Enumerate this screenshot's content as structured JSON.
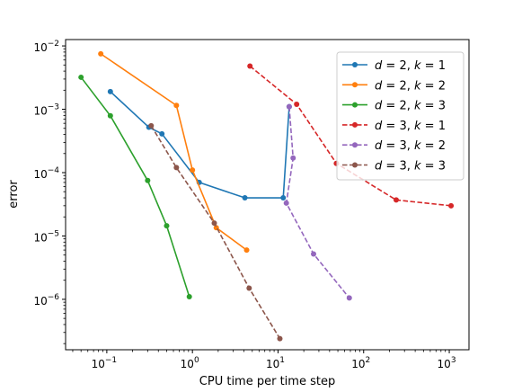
{
  "chart_data": {
    "type": "line",
    "xlabel": "CPU time per time step",
    "ylabel": "error",
    "xscale": "log",
    "yscale": "log",
    "xlim": [
      0.033,
      1700
    ],
    "ylim": [
      1.6e-07,
      0.0126
    ],
    "grid": false,
    "legend_position": "top-right",
    "x_ticks": [
      {
        "value": 0.1,
        "base": "10",
        "exp": "−1"
      },
      {
        "value": 1,
        "base": "10",
        "exp": "0"
      },
      {
        "value": 10,
        "base": "10",
        "exp": "1"
      },
      {
        "value": 100,
        "base": "10",
        "exp": "2"
      },
      {
        "value": 1000,
        "base": "10",
        "exp": "3"
      }
    ],
    "y_ticks": [
      {
        "value": 1e-06,
        "base": "10",
        "exp": "−6"
      },
      {
        "value": 1e-05,
        "base": "10",
        "exp": "−5"
      },
      {
        "value": 0.0001,
        "base": "10",
        "exp": "−4"
      },
      {
        "value": 0.001,
        "base": "10",
        "exp": "−3"
      },
      {
        "value": 0.01,
        "base": "10",
        "exp": "−2"
      }
    ],
    "series": [
      {
        "id": "d2k1",
        "name": "d = 2, k = 1",
        "d": "2",
        "k": "1",
        "color": "#1f77b4",
        "dashed": false,
        "points": [
          [
            0.11,
            0.0019
          ],
          [
            0.31,
            0.00052
          ],
          [
            0.44,
            0.00041
          ],
          [
            1.2,
            7e-05
          ],
          [
            4.1,
            4e-05
          ],
          [
            11.5,
            4e-05
          ],
          [
            13.5,
            0.0011
          ]
        ]
      },
      {
        "id": "d2k2",
        "name": "d = 2, k = 2",
        "d": "2",
        "k": "2",
        "color": "#ff7f0e",
        "dashed": false,
        "points": [
          [
            0.085,
            0.0075
          ],
          [
            0.65,
            0.00115
          ],
          [
            1.0,
            0.00011
          ],
          [
            1.9,
            1.35e-05
          ],
          [
            4.3,
            6e-06
          ]
        ]
      },
      {
        "id": "d2k3",
        "name": "d = 2, k = 3",
        "d": "2",
        "k": "3",
        "color": "#2ca02c",
        "dashed": false,
        "points": [
          [
            0.05,
            0.0032
          ],
          [
            0.11,
            0.00079
          ],
          [
            0.3,
            7.5e-05
          ],
          [
            0.5,
            1.45e-05
          ],
          [
            0.92,
            1.1e-06
          ]
        ]
      },
      {
        "id": "d3k1",
        "name": "d = 3, k = 1",
        "d": "3",
        "k": "1",
        "color": "#d62728",
        "dashed": true,
        "points": [
          [
            4.7,
            0.0048
          ],
          [
            16.5,
            0.0012
          ],
          [
            48,
            0.00014
          ],
          [
            240,
            3.7e-05
          ],
          [
            1050,
            3e-05
          ]
        ]
      },
      {
        "id": "d3k2",
        "name": "d = 3, k = 2",
        "d": "3",
        "k": "2",
        "color": "#9467bd",
        "dashed": true,
        "points": [
          [
            13.5,
            0.0011
          ],
          [
            15.0,
            0.00017
          ],
          [
            12.5,
            3.3e-05
          ],
          [
            26,
            5.2e-06
          ],
          [
            68,
            1.05e-06
          ]
        ]
      },
      {
        "id": "d3k3",
        "name": "d = 3, k = 3",
        "d": "3",
        "k": "3",
        "color": "#8c564b",
        "dashed": true,
        "points": [
          [
            0.33,
            0.00055
          ],
          [
            0.65,
            0.00012
          ],
          [
            1.8,
            1.6e-05
          ],
          [
            4.6,
            1.5e-06
          ],
          [
            10.5,
            2.4e-07
          ]
        ]
      }
    ]
  }
}
